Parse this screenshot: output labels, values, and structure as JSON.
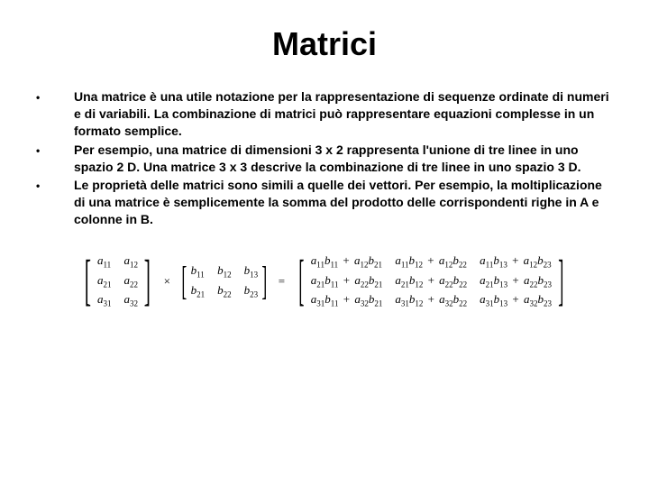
{
  "title": "Matrici",
  "bullets": [
    "Una matrice è una utile notazione per la rappresentazione di sequenze ordinate di numeri e di variabili.  La combinazione di matrici può rappresentare equazioni complesse in un formato semplice.",
    "Per esempio, una matrice di dimensioni  3 x 2 rappresenta l'unione di tre linee in uno spazio 2 D.  Una matrice  3 x 3 descrive la combinazione di tre linee in uno spazio 3 D.",
    "Le proprietà delle matrici sono simili a quelle dei vettori.  Per esempio, la moltiplicazione di una matrice è semplicemente la somma del prodotto delle corrispondenti righe in A e colonne in B."
  ],
  "equation": {
    "A": [
      [
        "a",
        "11",
        "a",
        "12"
      ],
      [
        "a",
        "21",
        "a",
        "22"
      ],
      [
        "a",
        "31",
        "a",
        "32"
      ]
    ],
    "op1": "×",
    "B": [
      [
        "b",
        "11",
        "b",
        "12",
        "b",
        "13"
      ],
      [
        "b",
        "21",
        "b",
        "22",
        "b",
        "23"
      ]
    ],
    "op2": "=",
    "C": [
      [
        [
          "a",
          "11",
          "b",
          "11",
          " + ",
          "a",
          "12",
          "b",
          "21"
        ],
        [
          "a",
          "11",
          "b",
          "12",
          " + ",
          "a",
          "12",
          "b",
          "22"
        ],
        [
          "a",
          "11",
          "b",
          "13",
          " + ",
          "a",
          "12",
          "b",
          "23"
        ]
      ],
      [
        [
          "a",
          "21",
          "b",
          "11",
          " + ",
          "a",
          "22",
          "b",
          "21"
        ],
        [
          "a",
          "21",
          "b",
          "12",
          " + ",
          "a",
          "22",
          "b",
          "22"
        ],
        [
          "a",
          "21",
          "b",
          "13",
          " + ",
          "a",
          "22",
          "b",
          "23"
        ]
      ],
      [
        [
          "a",
          "31",
          "b",
          "11",
          " + ",
          "a",
          "32",
          "b",
          "21"
        ],
        [
          "a",
          "31",
          "b",
          "12",
          " + ",
          "a",
          "32",
          "b",
          "22"
        ],
        [
          "a",
          "31",
          "b",
          "13",
          " + ",
          "a",
          "32",
          "b",
          "23"
        ]
      ]
    ]
  },
  "colors": {
    "bg": "#ffffff",
    "text": "#000000"
  }
}
